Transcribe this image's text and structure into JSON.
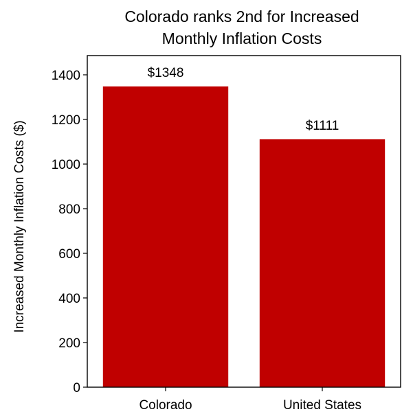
{
  "chart_data": {
    "type": "bar",
    "title_lines": [
      "Colorado ranks 2nd for Increased",
      "Monthly Inflation Costs"
    ],
    "xlabel": "",
    "ylabel": "Increased Monthly Inflation Costs ($)",
    "categories": [
      "Colorado",
      "United States"
    ],
    "values": [
      1348,
      1111
    ],
    "value_labels": [
      "$1348",
      "$1111"
    ],
    "ylim": [
      0,
      1400
    ],
    "yticks": [
      0,
      200,
      400,
      600,
      800,
      1000,
      1200,
      1400
    ],
    "grid": false,
    "legend": "none",
    "bar_color": "#c00000"
  }
}
